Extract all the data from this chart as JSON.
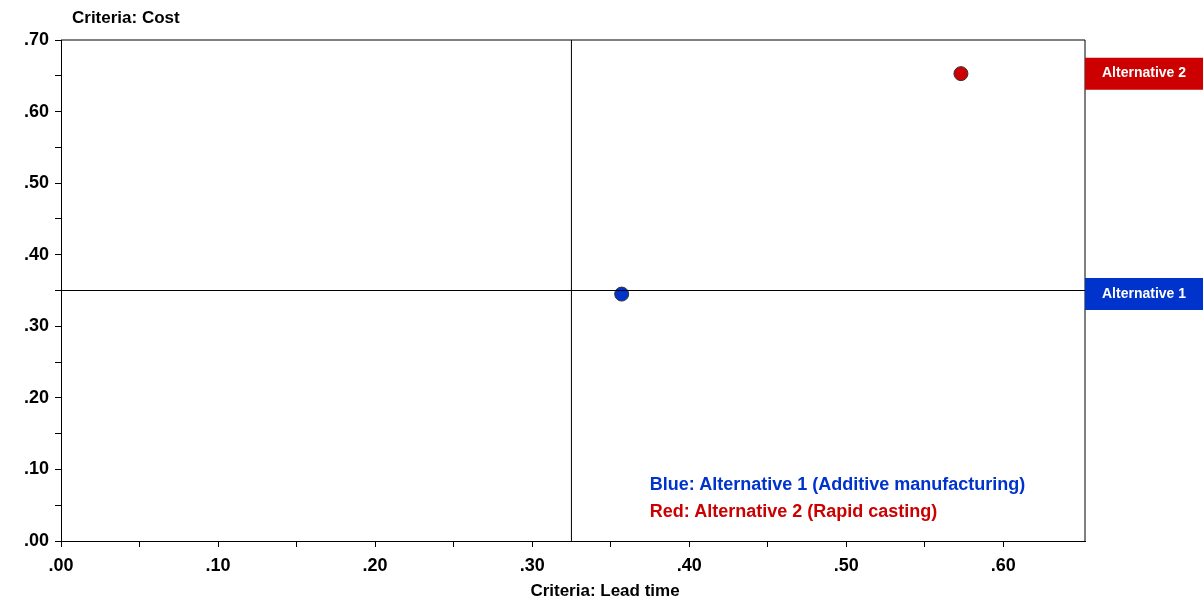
{
  "chart_data": {
    "type": "scatter",
    "xlabel": "Criteria: Lead time",
    "ylabel": "Criteria: Cost",
    "series": [
      {
        "name": "Alternative 1",
        "color": "#0033cc",
        "x": [
          0.357
        ],
        "values": [
          0.345
        ]
      },
      {
        "name": "Alternative 2",
        "color": "#cc0000",
        "x": [
          0.573
        ],
        "values": [
          0.653
        ]
      }
    ],
    "xlim": [
      0,
      0.652
    ],
    "ylim": [
      0,
      0.7
    ],
    "xticks": [
      {
        "value": 0,
        "label": ".00"
      },
      {
        "value": 0.05,
        "label": null
      },
      {
        "value": 0.1,
        "label": ".10"
      },
      {
        "value": 0.15,
        "label": null
      },
      {
        "value": 0.2,
        "label": ".20"
      },
      {
        "value": 0.25,
        "label": null
      },
      {
        "value": 0.3,
        "label": ".30"
      },
      {
        "value": 0.35,
        "label": null
      },
      {
        "value": 0.4,
        "label": ".40"
      },
      {
        "value": 0.45,
        "label": null
      },
      {
        "value": 0.5,
        "label": ".50"
      },
      {
        "value": 0.55,
        "label": null
      },
      {
        "value": 0.6,
        "label": ".60"
      }
    ],
    "yticks": [
      {
        "value": 0,
        "label": ".00"
      },
      {
        "value": 0.05,
        "label": null
      },
      {
        "value": 0.1,
        "label": ".10"
      },
      {
        "value": 0.15,
        "label": null
      },
      {
        "value": 0.2,
        "label": ".20"
      },
      {
        "value": 0.25,
        "label": null
      },
      {
        "value": 0.3,
        "label": ".30"
      },
      {
        "value": 0.35,
        "label": null
      },
      {
        "value": 0.4,
        "label": ".40"
      },
      {
        "value": 0.45,
        "label": null
      },
      {
        "value": 0.5,
        "label": ".50"
      },
      {
        "value": 0.55,
        "label": null
      },
      {
        "value": 0.6,
        "label": ".60"
      },
      {
        "value": 0.65,
        "label": null
      },
      {
        "value": 0.7,
        "label": ".70"
      }
    ],
    "ref_lines": [
      {
        "axis": "x",
        "value": 0.325,
        "color": "#000000"
      },
      {
        "axis": "y",
        "value": 0.35,
        "color": "#000000"
      }
    ],
    "annotations": [
      "Blue: Alternative 1 (Additive manufacturing)",
      "Red: Alternative 2 (Rapid casting)"
    ],
    "grid": false,
    "legend": false,
    "marker": "circle"
  }
}
